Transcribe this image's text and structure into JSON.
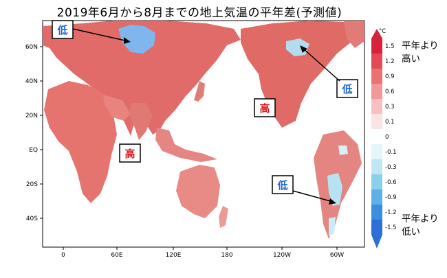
{
  "title": "2019年6月から8月までの地上気温の平年差(予測値)",
  "lat_labels": [
    "60N",
    "40N",
    "20N",
    "EQ",
    "20S",
    "40S"
  ],
  "lon_labels": [
    "0",
    "60E",
    "120E",
    "180",
    "120W",
    "60W"
  ],
  "callouts": {
    "low_siberia": "低",
    "low_canada": "低",
    "low_south_america": "低",
    "high_pacific": "高",
    "high_indian_ocean": "高"
  },
  "colors": {
    "high_text": "#e0141e",
    "low_text": "#1e64d2",
    "land_warm": "#e8807c",
    "land_cold": "#7fb6ee"
  },
  "scale": {
    "unit": "°C",
    "top_note": "平年より\n高い",
    "bottom_note": "平年より\n低い",
    "ticks": [
      "1.5",
      "1.2",
      "0.9",
      "0.6",
      "0.3",
      "0.1",
      "0",
      "-0.1",
      "-0.3",
      "-0.6",
      "-0.9",
      "-1.2",
      "-1.5"
    ],
    "colors": [
      "#d8223a",
      "#e24a55",
      "#eb7173",
      "#f2989a",
      "#f8c1c1",
      "#fce3e3",
      "#ffffff",
      "#e4f6fa",
      "#bde8f3",
      "#8ccfec",
      "#5fb0e6",
      "#3a8ee0",
      "#2a70d6"
    ]
  }
}
